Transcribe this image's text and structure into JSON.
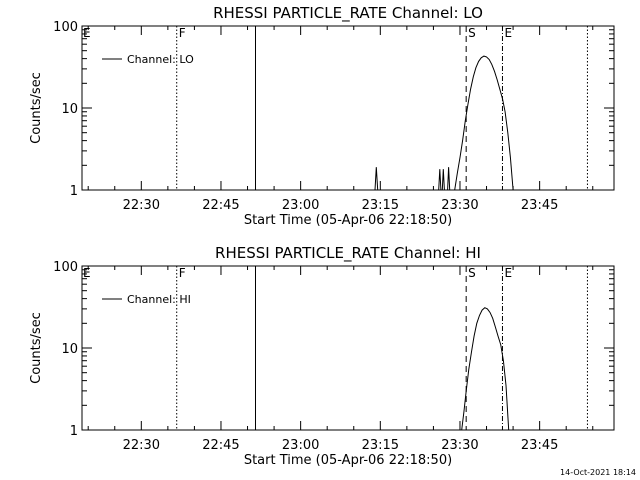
{
  "footer_timestamp": "14-Oct-2021 18:14",
  "chart_data": [
    {
      "type": "line",
      "title": "RHESSI PARTICLE_RATE Channel: LO",
      "xlabel": "Start Time (05-Apr-06 22:18:50)",
      "ylabel": "Counts/sec",
      "yscale": "log",
      "ylim": [
        1,
        100
      ],
      "xlim": [
        "22:18:50",
        "23:59:00"
      ],
      "x_ticks": [
        "22:30",
        "22:45",
        "23:00",
        "23:15",
        "23:30",
        "23:45"
      ],
      "y_ticks": [
        "1",
        "10",
        "100"
      ],
      "legend": {
        "position": "top-left",
        "entries": [
          "Channel: LO"
        ]
      },
      "markers": [
        {
          "label": "E",
          "time": "22:18:50",
          "style": "none"
        },
        {
          "label": "F",
          "time": "22:36:40",
          "style": "dotted"
        },
        {
          "label": "",
          "time": "22:51:30",
          "style": "solid"
        },
        {
          "label": "S",
          "time": "23:31:10",
          "style": "dashed"
        },
        {
          "label": "E",
          "time": "23:38:00",
          "style": "dashdot"
        },
        {
          "label": "",
          "time": "23:54:00",
          "style": "dotted"
        }
      ],
      "series": [
        {
          "name": "Channel: LO",
          "points": [
            [
              "23:14:00",
              1
            ],
            [
              "23:14:15",
              1.9
            ],
            [
              "23:14:30",
              1
            ],
            [
              "23:26:00",
              1
            ],
            [
              "23:26:12",
              1.8
            ],
            [
              "23:26:24",
              1
            ],
            [
              "23:26:40",
              1
            ],
            [
              "23:26:52",
              1.8
            ],
            [
              "23:27:04",
              1
            ],
            [
              "23:27:40",
              1
            ],
            [
              "23:27:52",
              1.9
            ],
            [
              "23:28:04",
              1
            ],
            [
              "23:29:00",
              1
            ],
            [
              "23:29:30",
              1.6
            ],
            [
              "23:30:00",
              2.5
            ],
            [
              "23:30:30",
              4
            ],
            [
              "23:31:00",
              7
            ],
            [
              "23:31:30",
              11
            ],
            [
              "23:32:00",
              17
            ],
            [
              "23:32:30",
              24
            ],
            [
              "23:33:00",
              31
            ],
            [
              "23:33:30",
              37
            ],
            [
              "23:34:00",
              41
            ],
            [
              "23:34:30",
              43
            ],
            [
              "23:35:00",
              42
            ],
            [
              "23:35:30",
              39
            ],
            [
              "23:36:00",
              34
            ],
            [
              "23:36:30",
              28
            ],
            [
              "23:37:00",
              22
            ],
            [
              "23:37:30",
              17
            ],
            [
              "23:38:00",
              13
            ],
            [
              "23:38:30",
              9
            ],
            [
              "23:39:00",
              5
            ],
            [
              "23:39:30",
              2.5
            ],
            [
              "23:40:00",
              1
            ]
          ]
        }
      ]
    },
    {
      "type": "line",
      "title": "RHESSI PARTICLE_RATE Channel: HI",
      "xlabel": "Start Time (05-Apr-06 22:18:50)",
      "ylabel": "Counts/sec",
      "yscale": "log",
      "ylim": [
        1,
        100
      ],
      "xlim": [
        "22:18:50",
        "23:59:00"
      ],
      "x_ticks": [
        "22:30",
        "22:45",
        "23:00",
        "23:15",
        "23:30",
        "23:45"
      ],
      "y_ticks": [
        "1",
        "10",
        "100"
      ],
      "legend": {
        "position": "top-left",
        "entries": [
          "Channel: HI"
        ]
      },
      "markers": [
        {
          "label": "E",
          "time": "22:18:50",
          "style": "none"
        },
        {
          "label": "F",
          "time": "22:36:40",
          "style": "dotted"
        },
        {
          "label": "",
          "time": "22:51:30",
          "style": "solid"
        },
        {
          "label": "S",
          "time": "23:31:10",
          "style": "dashed"
        },
        {
          "label": "E",
          "time": "23:38:00",
          "style": "dashdot"
        },
        {
          "label": "",
          "time": "23:54:00",
          "style": "dotted"
        }
      ],
      "series": [
        {
          "name": "Channel: HI",
          "points": [
            [
              "23:30:20",
              1
            ],
            [
              "23:30:45",
              1.7
            ],
            [
              "23:31:10",
              3
            ],
            [
              "23:31:40",
              5.5
            ],
            [
              "23:32:10",
              9
            ],
            [
              "23:32:40",
              14
            ],
            [
              "23:33:10",
              20
            ],
            [
              "23:33:40",
              25
            ],
            [
              "23:34:10",
              29
            ],
            [
              "23:34:40",
              31
            ],
            [
              "23:35:10",
              30
            ],
            [
              "23:35:40",
              27
            ],
            [
              "23:36:10",
              23
            ],
            [
              "23:36:40",
              18
            ],
            [
              "23:37:10",
              14
            ],
            [
              "23:37:40",
              11
            ],
            [
              "23:38:10",
              7
            ],
            [
              "23:38:40",
              3.5
            ],
            [
              "23:39:10",
              1
            ]
          ]
        }
      ]
    }
  ]
}
